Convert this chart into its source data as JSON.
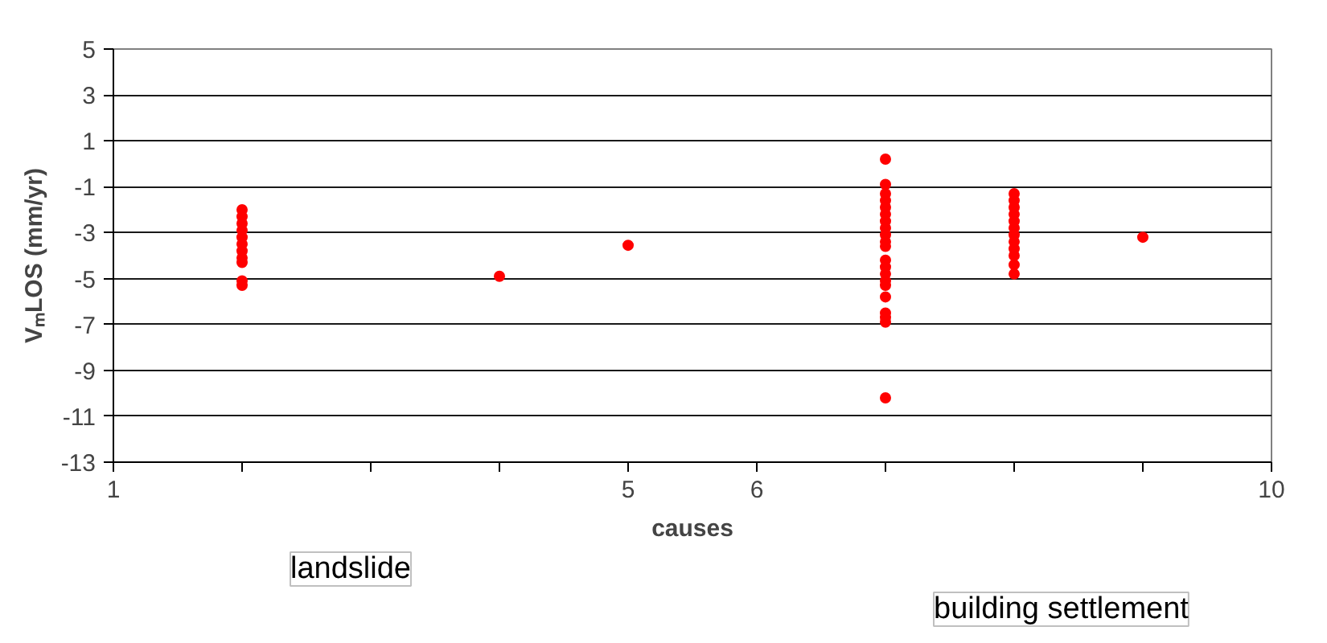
{
  "chart_data": {
    "type": "scatter",
    "xlabel": "causes",
    "ylabel": "VₘLOS (mm/yr)",
    "xlim": [
      1,
      10
    ],
    "ylim": [
      -13,
      5
    ],
    "xticks": [
      1,
      {
        "value": 2,
        "label": null
      },
      {
        "value": 3,
        "label": null
      },
      {
        "value": 4,
        "label": null
      },
      5,
      6,
      {
        "value": 7,
        "label": null
      },
      {
        "value": 8,
        "label": null
      },
      {
        "value": 9,
        "label": null
      },
      10
    ],
    "yticks": [
      -13,
      -11,
      -9,
      -7,
      -5,
      -3,
      -1,
      1,
      3,
      5
    ],
    "grid": "y",
    "marker": "circle",
    "annotations": [
      "landslide",
      "building settlement"
    ],
    "series": [
      {
        "color": "#ff0000",
        "x": [
          2,
          2,
          2,
          2,
          2,
          2,
          2,
          2,
          2,
          2,
          2,
          4,
          5,
          7,
          7,
          7,
          7,
          7,
          7,
          7,
          7,
          7,
          7,
          7,
          7,
          7,
          7,
          7,
          7,
          7,
          7,
          7,
          7,
          7,
          8,
          8,
          8,
          8,
          8,
          8,
          8,
          8,
          8,
          8,
          8,
          8,
          9
        ],
        "values": [
          -2.0,
          -2.3,
          -2.6,
          -2.9,
          -3.2,
          -3.5,
          -3.8,
          -4.1,
          -4.3,
          -5.1,
          -5.3,
          -4.9,
          -3.55,
          0.2,
          -0.9,
          -1.3,
          -1.6,
          -1.9,
          -2.2,
          -2.5,
          -2.8,
          -3.1,
          -3.4,
          -3.6,
          -4.2,
          -4.5,
          -4.8,
          -5.1,
          -5.3,
          -5.8,
          -6.5,
          -6.7,
          -6.9,
          -10.2,
          -1.3,
          -1.6,
          -1.9,
          -2.2,
          -2.5,
          -2.8,
          -3.1,
          -3.4,
          -3.7,
          -4.0,
          -4.4,
          -4.8,
          -3.2
        ]
      }
    ]
  }
}
